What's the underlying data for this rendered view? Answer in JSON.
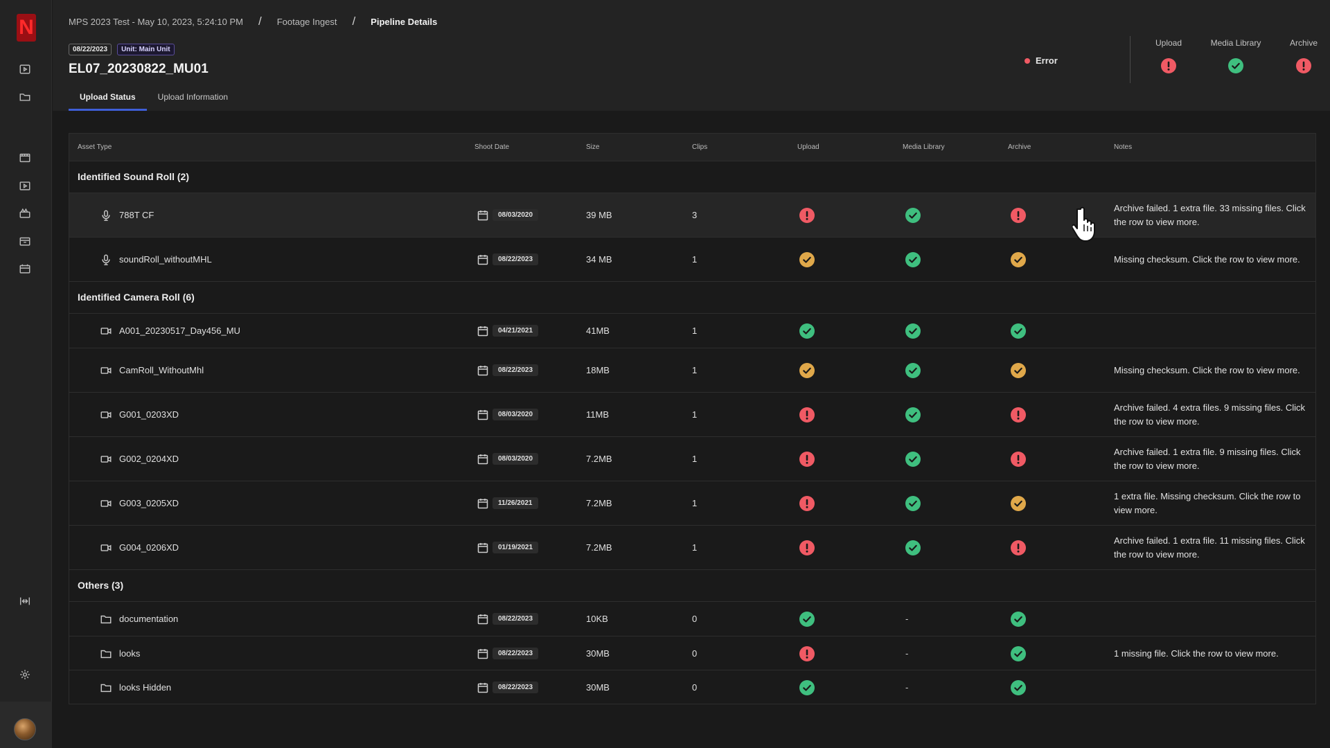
{
  "breadcrumb": [
    "MPS 2023 Test - May 10, 2023, 5:24:10 PM",
    "Footage Ingest",
    "Pipeline Details"
  ],
  "badges": {
    "date": "08/22/2023",
    "unit": "Unit: Main Unit"
  },
  "page_title": "EL07_20230822_MU01",
  "tabs": [
    "Upload Status",
    "Upload Information"
  ],
  "status": {
    "label": "Error",
    "color": "#f05a64"
  },
  "summary": [
    {
      "label": "Upload",
      "status": "error"
    },
    {
      "label": "Media Library",
      "status": "success"
    },
    {
      "label": "Archive",
      "status": "error"
    }
  ],
  "table": {
    "columns": [
      "Asset Type",
      "Shoot Date",
      "Size",
      "Clips",
      "Upload",
      "Media Library",
      "Archive",
      "Notes"
    ],
    "groups": [
      {
        "title": "Identified Sound Roll (2)",
        "rows": [
          {
            "icon": "microphone-icon",
            "name": "788T CF",
            "date": "08/03/2020",
            "size": "39 MB",
            "clips": "3",
            "upload": "error",
            "media": "success",
            "archive": "error",
            "notes": "Archive failed. 1 extra file. 33 missing files. Click the row to view more."
          },
          {
            "icon": "microphone-icon",
            "name": "soundRoll_withoutMHL",
            "date": "08/22/2023",
            "size": "34 MB",
            "clips": "1",
            "upload": "warning",
            "media": "success",
            "archive": "warning",
            "notes": "Missing checksum. Click the row to view more."
          }
        ]
      },
      {
        "title": "Identified Camera Roll (6)",
        "rows": [
          {
            "icon": "video-camera-icon",
            "name": "A001_20230517_Day456_MU",
            "date": "04/21/2021",
            "size": "41MB",
            "clips": "1",
            "upload": "success",
            "media": "success",
            "archive": "success",
            "notes": ""
          },
          {
            "icon": "video-camera-icon",
            "name": "CamRoll_WithoutMhl",
            "date": "08/22/2023",
            "size": "18MB",
            "clips": "1",
            "upload": "warning",
            "media": "success",
            "archive": "warning",
            "notes": "Missing checksum. Click the row to view more."
          },
          {
            "icon": "video-camera-icon",
            "name": "G001_0203XD",
            "date": "08/03/2020",
            "size": "11MB",
            "clips": "1",
            "upload": "error",
            "media": "success",
            "archive": "error",
            "notes": "Archive failed. 4 extra files. 9 missing files. Click the row to view more."
          },
          {
            "icon": "video-camera-icon",
            "name": "G002_0204XD",
            "date": "08/03/2020",
            "size": "7.2MB",
            "clips": "1",
            "upload": "error",
            "media": "success",
            "archive": "error",
            "notes": "Archive failed. 1 extra file. 9 missing files. Click the row to view more."
          },
          {
            "icon": "video-camera-icon",
            "name": "G003_0205XD",
            "date": "11/26/2021",
            "size": "7.2MB",
            "clips": "1",
            "upload": "error",
            "media": "success",
            "archive": "warning",
            "notes": "1 extra file. Missing checksum. Click the row to view more."
          },
          {
            "icon": "video-camera-icon",
            "name": "G004_0206XD",
            "date": "01/19/2021",
            "size": "7.2MB",
            "clips": "1",
            "upload": "error",
            "media": "success",
            "archive": "error",
            "notes": "Archive failed. 1 extra file. 11 missing files. Click the row to view more."
          }
        ]
      },
      {
        "title": "Others (3)",
        "rows": [
          {
            "icon": "folder-icon",
            "name": "documentation",
            "date": "08/22/2023",
            "size": "10KB",
            "clips": "0",
            "upload": "success",
            "media": "-",
            "archive": "success",
            "notes": ""
          },
          {
            "icon": "folder-icon",
            "name": "looks",
            "date": "08/22/2023",
            "size": "30MB",
            "clips": "0",
            "upload": "error",
            "media": "-",
            "archive": "success",
            "notes": "1 missing file. Click the row to view more."
          },
          {
            "icon": "folder-icon",
            "name": "looks Hidden",
            "date": "08/22/2023",
            "size": "30MB",
            "clips": "0",
            "upload": "success",
            "media": "-",
            "archive": "success",
            "notes": ""
          }
        ]
      }
    ]
  },
  "colors": {
    "error": "#f05a64",
    "success": "#3fbf7f",
    "warning": "#e0a84a",
    "accent": "#3f5fd8"
  }
}
